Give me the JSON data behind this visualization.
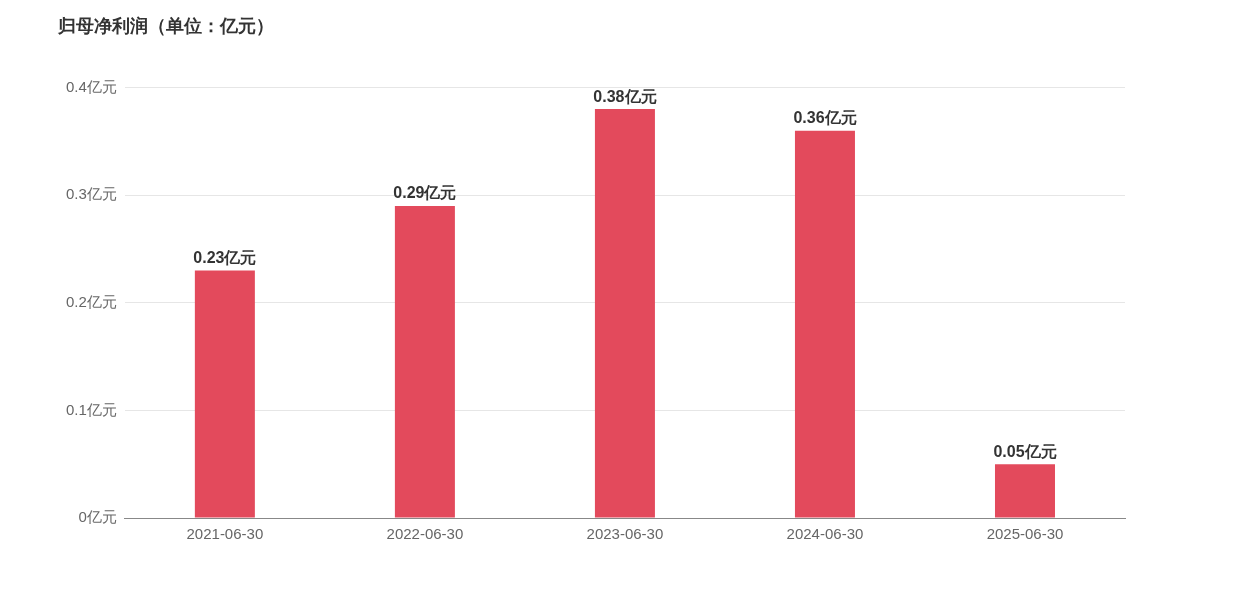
{
  "chart_data": {
    "type": "bar",
    "title": "归母净利润（单位：亿元）",
    "categories": [
      "2021-06-30",
      "2022-06-30",
      "2023-06-30",
      "2024-06-30",
      "2025-06-30"
    ],
    "values": [
      0.23,
      0.29,
      0.38,
      0.36,
      0.05
    ],
    "value_labels": [
      "0.23亿元",
      "0.29亿元",
      "0.38亿元",
      "0.36亿元",
      "0.05亿元"
    ],
    "color": "#e34a5c",
    "ylim": [
      0,
      0.4
    ],
    "yticks": [
      {
        "value": 0,
        "label": "0亿元"
      },
      {
        "value": 0.1,
        "label": "0.1亿元"
      },
      {
        "value": 0.2,
        "label": "0.2亿元"
      },
      {
        "value": 0.3,
        "label": "0.3亿元"
      },
      {
        "value": 0.4,
        "label": "0.4亿元"
      }
    ],
    "grid": "y",
    "legend": false
  }
}
